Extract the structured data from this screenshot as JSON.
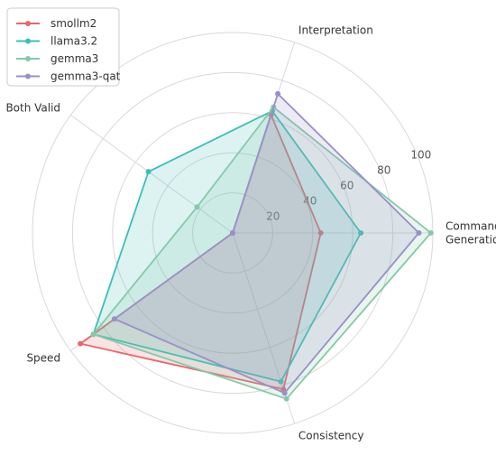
{
  "chart_data": {
    "type": "radar",
    "axes": [
      "Command\nGeneration",
      "Interpretation",
      "Both Valid",
      "Speed",
      "Consistency"
    ],
    "rlim": [
      0,
      100
    ],
    "r_ticks": [
      20,
      40,
      60,
      80,
      100
    ],
    "grid": true,
    "legend": "top-left",
    "series": [
      {
        "name": "smollm2",
        "color": "#e8666b",
        "values": [
          44,
          62,
          0,
          94,
          82
        ]
      },
      {
        "name": "llama3.2",
        "color": "#3bbfb8",
        "values": [
          64,
          64,
          52,
          86,
          78
        ]
      },
      {
        "name": "gemma3",
        "color": "#86c9a8",
        "values": [
          99,
          66,
          22,
          86,
          87
        ]
      },
      {
        "name": "gemma3-qat",
        "color": "#9890c8",
        "values": [
          93,
          73,
          0,
          73,
          84
        ]
      }
    ]
  }
}
